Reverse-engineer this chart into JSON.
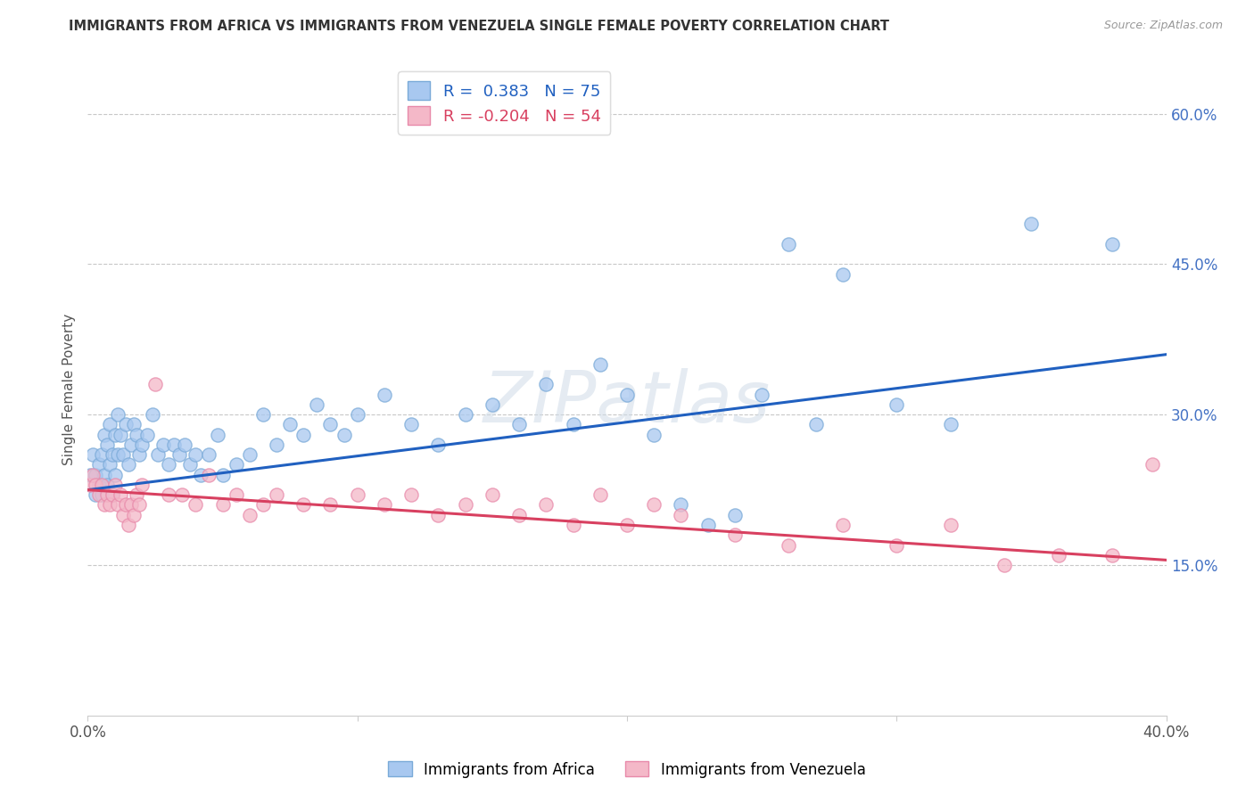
{
  "title": "IMMIGRANTS FROM AFRICA VS IMMIGRANTS FROM VENEZUELA SINGLE FEMALE POVERTY CORRELATION CHART",
  "source": "Source: ZipAtlas.com",
  "ylabel": "Single Female Poverty",
  "yticks": [
    "15.0%",
    "30.0%",
    "45.0%",
    "60.0%"
  ],
  "ytick_vals": [
    0.15,
    0.3,
    0.45,
    0.6
  ],
  "xlim": [
    0.0,
    0.4
  ],
  "ylim": [
    0.0,
    0.65
  ],
  "legend_africa_r": "0.383",
  "legend_africa_n": "75",
  "legend_venezuela_r": "-0.204",
  "legend_venezuela_n": "54",
  "africa_color": "#a8c8f0",
  "venezuela_color": "#f4b8c8",
  "africa_edge_color": "#7aaad8",
  "venezuela_edge_color": "#e88aaa",
  "africa_line_color": "#2060c0",
  "venezuela_line_color": "#d84060",
  "watermark": "ZIPatlas",
  "legend_bottom_africa": "Immigrants from Africa",
  "legend_bottom_venezuela": "Immigrants from Venezuela",
  "africa_scatter_x": [
    0.001,
    0.002,
    0.003,
    0.003,
    0.004,
    0.004,
    0.005,
    0.005,
    0.006,
    0.006,
    0.007,
    0.007,
    0.008,
    0.008,
    0.009,
    0.009,
    0.01,
    0.01,
    0.011,
    0.011,
    0.012,
    0.013,
    0.014,
    0.015,
    0.016,
    0.017,
    0.018,
    0.019,
    0.02,
    0.022,
    0.024,
    0.026,
    0.028,
    0.03,
    0.032,
    0.034,
    0.036,
    0.038,
    0.04,
    0.042,
    0.045,
    0.048,
    0.05,
    0.055,
    0.06,
    0.065,
    0.07,
    0.075,
    0.08,
    0.085,
    0.09,
    0.095,
    0.1,
    0.11,
    0.12,
    0.13,
    0.14,
    0.15,
    0.16,
    0.17,
    0.18,
    0.19,
    0.2,
    0.21,
    0.22,
    0.23,
    0.24,
    0.25,
    0.26,
    0.27,
    0.28,
    0.3,
    0.32,
    0.35,
    0.38
  ],
  "africa_scatter_y": [
    0.24,
    0.26,
    0.24,
    0.22,
    0.25,
    0.23,
    0.26,
    0.22,
    0.28,
    0.24,
    0.27,
    0.23,
    0.29,
    0.25,
    0.26,
    0.22,
    0.28,
    0.24,
    0.3,
    0.26,
    0.28,
    0.26,
    0.29,
    0.25,
    0.27,
    0.29,
    0.28,
    0.26,
    0.27,
    0.28,
    0.3,
    0.26,
    0.27,
    0.25,
    0.27,
    0.26,
    0.27,
    0.25,
    0.26,
    0.24,
    0.26,
    0.28,
    0.24,
    0.25,
    0.26,
    0.3,
    0.27,
    0.29,
    0.28,
    0.31,
    0.29,
    0.28,
    0.3,
    0.32,
    0.29,
    0.27,
    0.3,
    0.31,
    0.29,
    0.33,
    0.29,
    0.35,
    0.32,
    0.28,
    0.21,
    0.19,
    0.2,
    0.32,
    0.47,
    0.29,
    0.44,
    0.31,
    0.29,
    0.49,
    0.47
  ],
  "venezuela_scatter_x": [
    0.001,
    0.002,
    0.003,
    0.004,
    0.005,
    0.006,
    0.007,
    0.008,
    0.009,
    0.01,
    0.011,
    0.012,
    0.013,
    0.014,
    0.015,
    0.016,
    0.017,
    0.018,
    0.019,
    0.02,
    0.025,
    0.03,
    0.035,
    0.04,
    0.045,
    0.05,
    0.055,
    0.06,
    0.065,
    0.07,
    0.08,
    0.09,
    0.1,
    0.11,
    0.12,
    0.13,
    0.14,
    0.15,
    0.16,
    0.17,
    0.18,
    0.19,
    0.2,
    0.21,
    0.22,
    0.24,
    0.26,
    0.28,
    0.3,
    0.32,
    0.34,
    0.36,
    0.38,
    0.395
  ],
  "venezuela_scatter_y": [
    0.23,
    0.24,
    0.23,
    0.22,
    0.23,
    0.21,
    0.22,
    0.21,
    0.22,
    0.23,
    0.21,
    0.22,
    0.2,
    0.21,
    0.19,
    0.21,
    0.2,
    0.22,
    0.21,
    0.23,
    0.33,
    0.22,
    0.22,
    0.21,
    0.24,
    0.21,
    0.22,
    0.2,
    0.21,
    0.22,
    0.21,
    0.21,
    0.22,
    0.21,
    0.22,
    0.2,
    0.21,
    0.22,
    0.2,
    0.21,
    0.19,
    0.22,
    0.19,
    0.21,
    0.2,
    0.18,
    0.17,
    0.19,
    0.17,
    0.19,
    0.15,
    0.16,
    0.16,
    0.25
  ],
  "africa_line_x0": 0.0,
  "africa_line_y0": 0.225,
  "africa_line_x1": 0.4,
  "africa_line_y1": 0.36,
  "venezuela_line_x0": 0.0,
  "venezuela_line_y0": 0.225,
  "venezuela_line_x1": 0.4,
  "venezuela_line_y1": 0.155
}
